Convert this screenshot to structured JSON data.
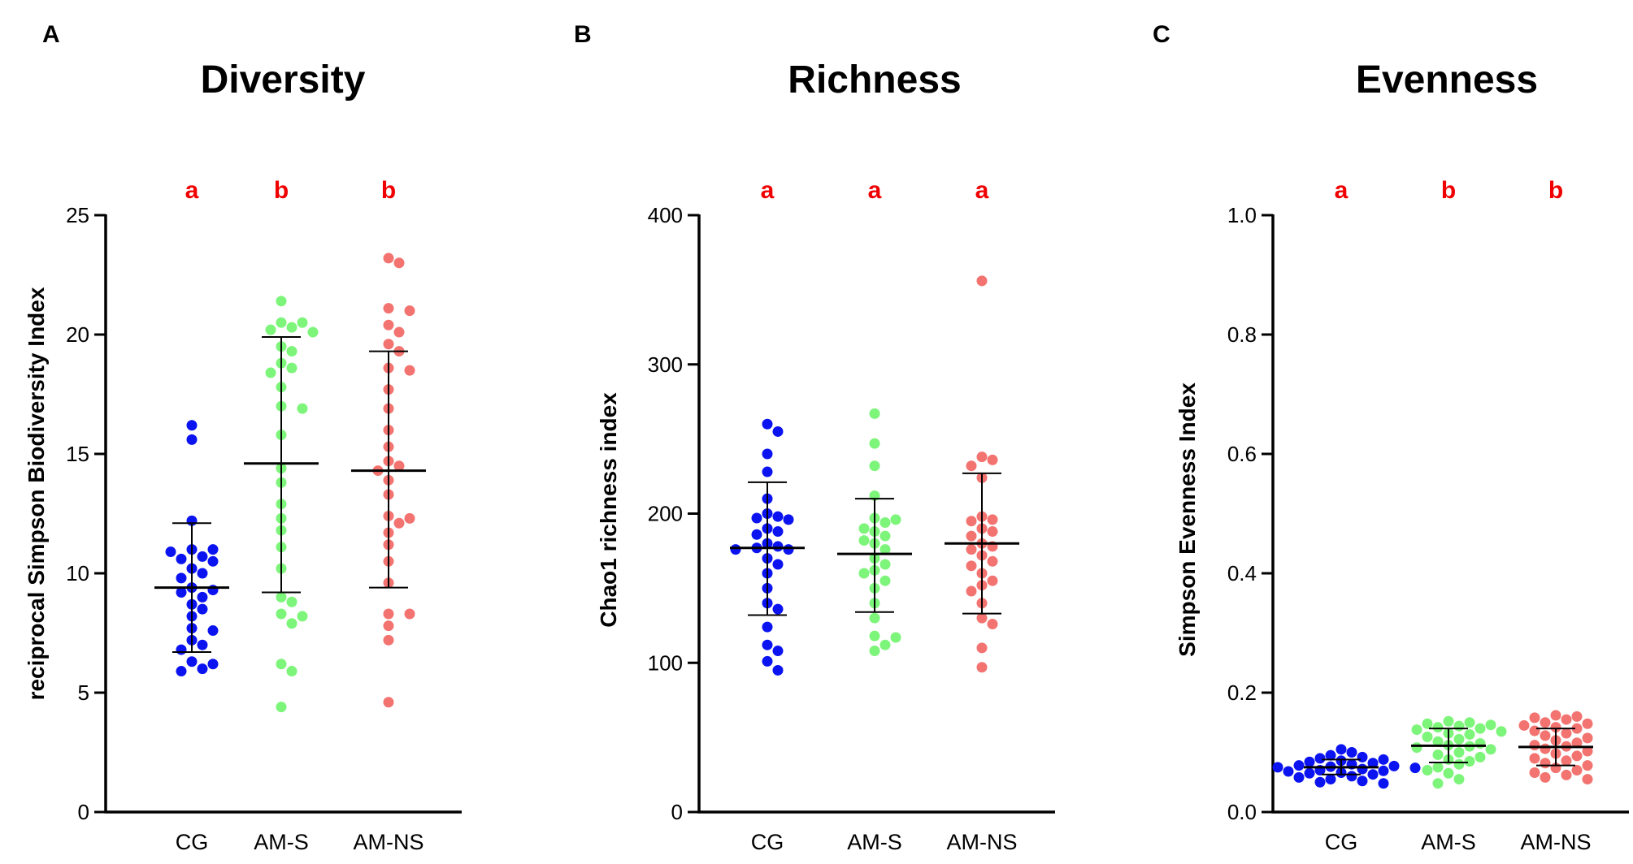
{
  "colors": {
    "CG": "#0b14f0",
    "AM-S": "#7df57a",
    "AM-NS": "#f27370",
    "significance": "#f00000",
    "axis": "#000000"
  },
  "chart_data": [
    {
      "type": "scatter",
      "panel_letter": "A",
      "title": "Diversity",
      "xlabel": "",
      "ylabel": "reciprocal Simpson Biodiversity Index",
      "ylim": [
        0,
        25
      ],
      "yticks": [
        "0",
        "5",
        "10",
        "15",
        "20",
        "25"
      ],
      "categories": [
        "CG",
        "AM-S",
        "AM-NS"
      ],
      "significance": [
        "a",
        "b",
        "b"
      ],
      "series": [
        {
          "category": "CG",
          "mean": 9.4,
          "sd_low": 6.7,
          "sd_high": 12.1,
          "values": [
            16.2,
            15.6,
            12.2,
            11.0,
            11.0,
            10.9,
            10.7,
            10.6,
            10.5,
            10.2,
            10.0,
            9.8,
            9.4,
            9.3,
            9.2,
            9.0,
            8.7,
            8.5,
            8.2,
            7.7,
            7.6,
            7.2,
            7.0,
            6.8,
            6.3,
            6.2,
            6.0,
            5.9
          ]
        },
        {
          "category": "AM-S",
          "mean": 14.6,
          "sd_low": 9.2,
          "sd_high": 19.9,
          "values": [
            21.4,
            20.5,
            20.5,
            20.3,
            20.2,
            20.1,
            19.5,
            19.3,
            18.8,
            18.6,
            18.4,
            17.8,
            17.0,
            16.9,
            15.8,
            14.4,
            13.8,
            12.9,
            12.3,
            11.8,
            11.1,
            10.2,
            9.0,
            8.8,
            8.3,
            8.2,
            7.9,
            6.2,
            5.9,
            4.4
          ]
        },
        {
          "category": "AM-NS",
          "mean": 14.3,
          "sd_low": 9.4,
          "sd_high": 19.3,
          "values": [
            23.2,
            23.0,
            21.1,
            21.0,
            20.4,
            20.1,
            19.6,
            19.3,
            18.6,
            18.5,
            17.7,
            16.9,
            16.0,
            15.3,
            14.7,
            14.5,
            14.3,
            13.9,
            13.3,
            12.4,
            12.3,
            12.1,
            11.7,
            11.2,
            10.5,
            9.6,
            8.3,
            8.3,
            7.8,
            7.2,
            4.6
          ]
        }
      ]
    },
    {
      "type": "scatter",
      "panel_letter": "B",
      "title": "Richness",
      "xlabel": "",
      "ylabel": "Chao1 richness index",
      "ylim": [
        0,
        400
      ],
      "yticks": [
        "0",
        "100",
        "200",
        "300",
        "400"
      ],
      "categories": [
        "CG",
        "AM-S",
        "AM-NS"
      ],
      "significance": [
        "a",
        "a",
        "a"
      ],
      "series": [
        {
          "category": "CG",
          "mean": 177,
          "sd_low": 132,
          "sd_high": 221,
          "values": [
            260,
            255,
            240,
            228,
            210,
            200,
            198,
            197,
            196,
            190,
            188,
            186,
            180,
            178,
            177,
            176,
            176,
            170,
            166,
            160,
            150,
            140,
            136,
            124,
            112,
            108,
            101,
            95
          ]
        },
        {
          "category": "AM-S",
          "mean": 173,
          "sd_low": 134,
          "sd_high": 210,
          "values": [
            267,
            247,
            232,
            212,
            197,
            196,
            194,
            190,
            188,
            185,
            182,
            180,
            176,
            170,
            166,
            162,
            160,
            155,
            150,
            140,
            130,
            118,
            117,
            112,
            108
          ]
        },
        {
          "category": "AM-NS",
          "mean": 180,
          "sd_low": 133,
          "sd_high": 227,
          "values": [
            356,
            238,
            236,
            232,
            224,
            198,
            196,
            195,
            190,
            188,
            185,
            180,
            178,
            176,
            172,
            168,
            165,
            160,
            155,
            152,
            148,
            140,
            130,
            126,
            110,
            97
          ]
        }
      ]
    },
    {
      "type": "scatter",
      "panel_letter": "C",
      "title": "Evenness",
      "xlabel": "",
      "ylabel": "Simpson Evenness Index",
      "ylim": [
        0,
        1.0
      ],
      "yticks": [
        "0.0",
        "0.2",
        "0.4",
        "0.6",
        "0.8",
        "1.0"
      ],
      "categories": [
        "CG",
        "AM-S",
        "AM-NS"
      ],
      "significance": [
        "a",
        "b",
        "b"
      ],
      "series": [
        {
          "category": "CG",
          "mean": 0.075,
          "sd_low": 0.063,
          "sd_high": 0.088,
          "values": [
            0.105,
            0.1,
            0.095,
            0.092,
            0.09,
            0.088,
            0.086,
            0.084,
            0.082,
            0.08,
            0.078,
            0.077,
            0.076,
            0.075,
            0.074,
            0.072,
            0.07,
            0.069,
            0.068,
            0.066,
            0.065,
            0.063,
            0.06,
            0.058,
            0.055,
            0.052,
            0.05,
            0.048
          ]
        },
        {
          "category": "AM-S",
          "mean": 0.111,
          "sd_low": 0.083,
          "sd_high": 0.14,
          "values": [
            0.152,
            0.15,
            0.148,
            0.146,
            0.144,
            0.142,
            0.14,
            0.138,
            0.135,
            0.132,
            0.13,
            0.126,
            0.122,
            0.118,
            0.115,
            0.112,
            0.11,
            0.108,
            0.105,
            0.1,
            0.096,
            0.092,
            0.088,
            0.085,
            0.08,
            0.075,
            0.07,
            0.065,
            0.055,
            0.048
          ]
        },
        {
          "category": "AM-NS",
          "mean": 0.109,
          "sd_low": 0.078,
          "sd_high": 0.14,
          "values": [
            0.162,
            0.16,
            0.158,
            0.155,
            0.15,
            0.148,
            0.145,
            0.142,
            0.14,
            0.136,
            0.132,
            0.128,
            0.124,
            0.12,
            0.116,
            0.112,
            0.11,
            0.106,
            0.102,
            0.098,
            0.094,
            0.09,
            0.086,
            0.082,
            0.078,
            0.074,
            0.07,
            0.066,
            0.062,
            0.058,
            0.055
          ]
        }
      ]
    }
  ]
}
